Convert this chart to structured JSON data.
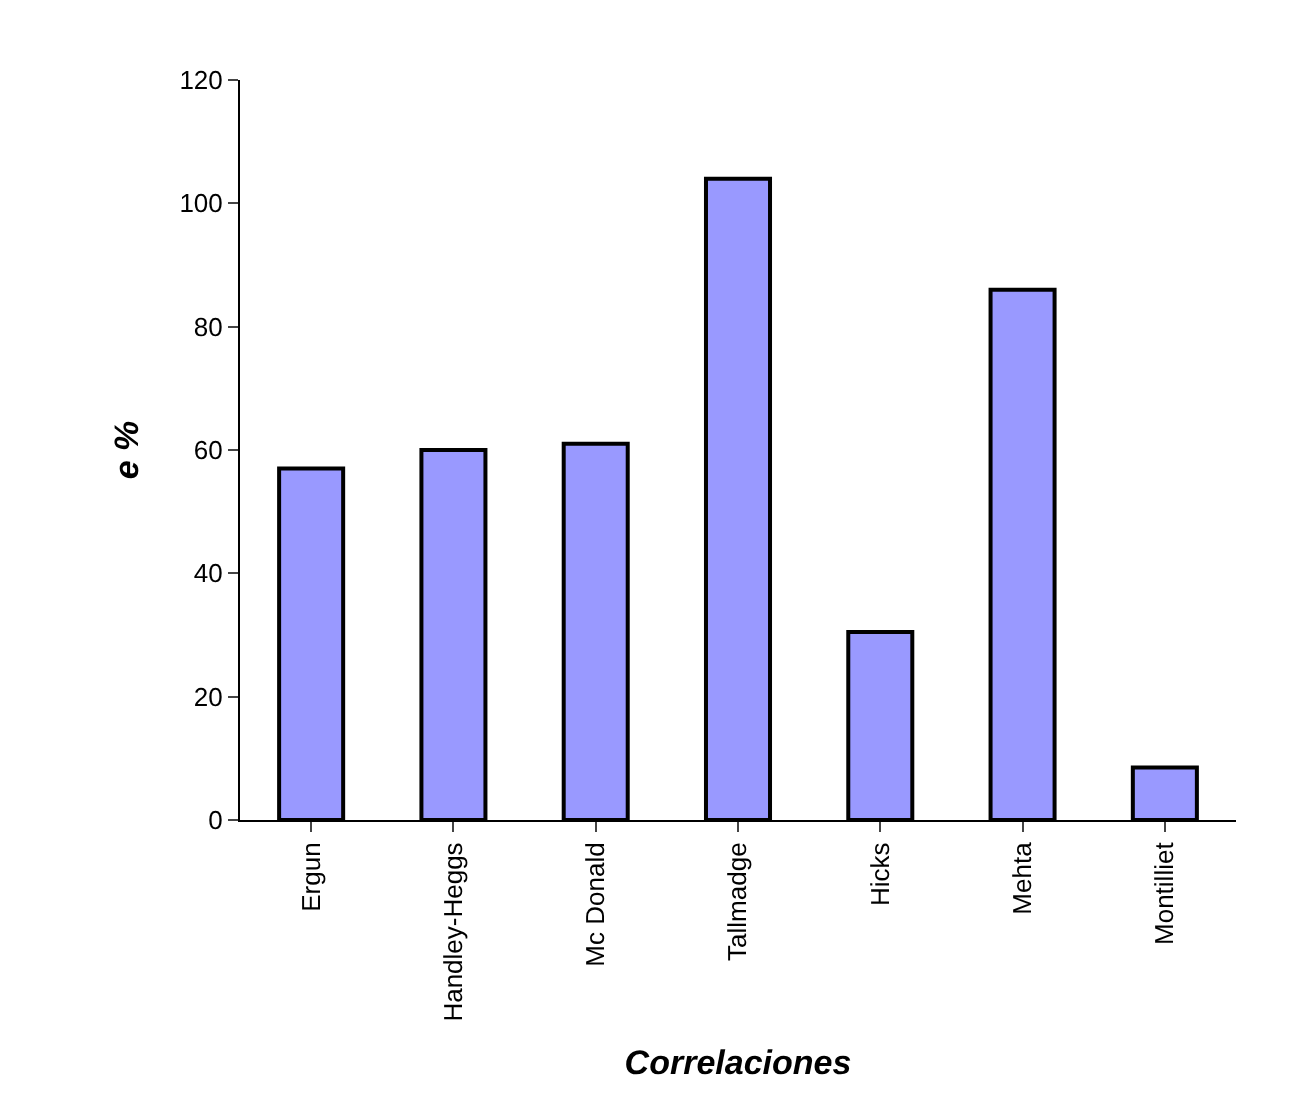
{
  "chart_data": {
    "type": "bar",
    "xlabel": "Correlaciones",
    "ylabel": "e %",
    "categories": [
      "Ergun",
      "Handley-Heggs",
      "Mc Donald",
      "Tallmadge",
      "Hicks",
      "Mehta",
      "Montilliet"
    ],
    "values": [
      57,
      60,
      61,
      104,
      30.5,
      86,
      8.5
    ],
    "color": "#9999ff",
    "ylim": [
      0,
      120
    ],
    "yticks": [
      0,
      20,
      40,
      60,
      80,
      100,
      120
    ]
  }
}
